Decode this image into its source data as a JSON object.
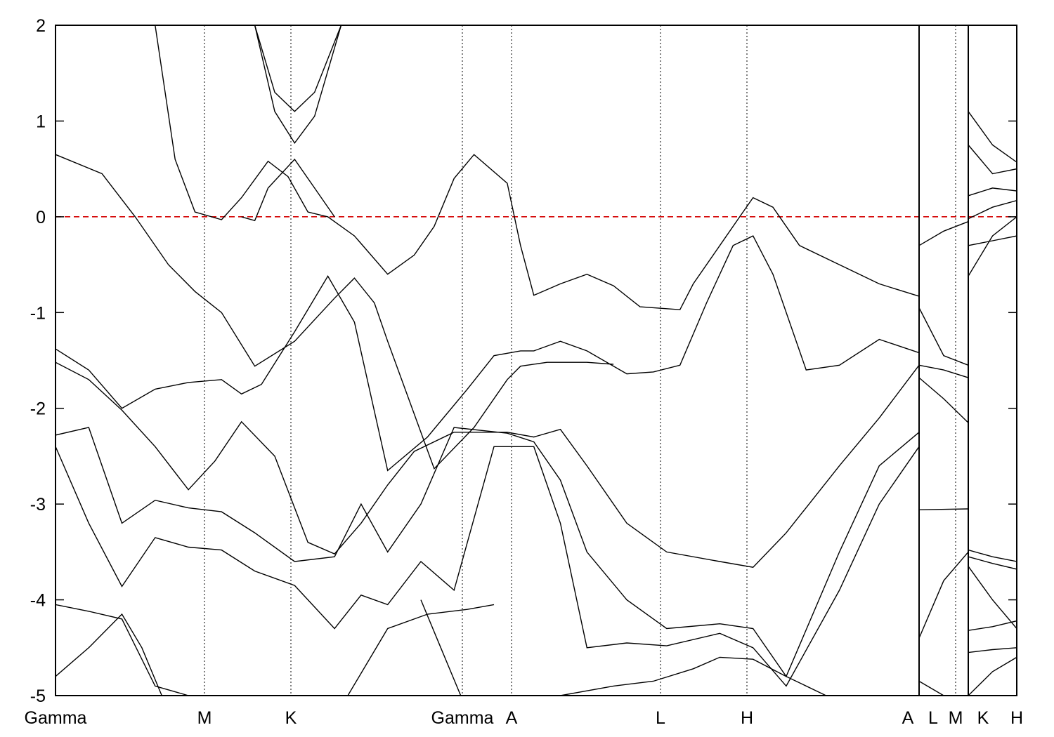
{
  "chart_data": {
    "type": "line",
    "title": "",
    "xlabel": "",
    "ylabel": "",
    "ylim": [
      -5,
      2
    ],
    "y_ticks": [
      -5,
      -4,
      -3,
      -2,
      -1,
      0,
      1,
      2
    ],
    "fermi_level": 0,
    "fermi_color": "#d40000",
    "line_color": "#000000",
    "k_path_ticks": [
      "Gamma",
      "M",
      "K",
      "Gamma",
      "A",
      "L",
      "H",
      "A",
      "L",
      "M",
      "K",
      "H"
    ],
    "segments": [
      {
        "from": "Gamma",
        "to": "M"
      },
      {
        "from": "M",
        "to": "K"
      },
      {
        "from": "K",
        "to": "Gamma"
      },
      {
        "from": "Gamma",
        "to": "A"
      },
      {
        "from": "A",
        "to": "L"
      },
      {
        "from": "L",
        "to": "H"
      },
      {
        "from": "H",
        "to": "A"
      },
      {
        "from": "L",
        "to": "M"
      },
      {
        "from": "K",
        "to": "H"
      }
    ],
    "series": [
      {
        "values": [
          [
            0,
            0.65
          ],
          [
            0.07,
            0.45
          ],
          [
            0.12,
            0.0
          ],
          [
            0.17,
            -0.5
          ],
          [
            0.21,
            -0.78
          ],
          [
            0.25,
            -1.0
          ],
          [
            0.3,
            -1.56
          ],
          [
            0.36,
            -1.3
          ],
          [
            0.42,
            -0.85
          ],
          [
            0.45,
            -0.64
          ],
          [
            0.48,
            -0.9
          ],
          [
            0.5,
            -1.3
          ],
          [
            0.57,
            -2.63
          ],
          [
            0.63,
            -2.2
          ],
          [
            0.68,
            -1.7
          ],
          [
            0.7,
            -1.56
          ],
          [
            0.74,
            -1.52
          ],
          [
            0.8,
            -1.52
          ],
          [
            0.84,
            -1.54
          ]
        ]
      },
      {
        "values": [
          [
            0.15,
            2.0
          ],
          [
            0.18,
            0.6
          ],
          [
            0.21,
            0.05
          ],
          [
            0.25,
            -0.03
          ],
          [
            0.28,
            0.2
          ],
          [
            0.32,
            0.58
          ],
          [
            0.35,
            0.42
          ],
          [
            0.38,
            0.05
          ],
          [
            0.41,
            0.0
          ],
          [
            0.45,
            -0.2
          ],
          [
            0.5,
            -0.6
          ],
          [
            0.54,
            -0.4
          ],
          [
            0.57,
            -0.1
          ],
          [
            0.6,
            0.4
          ],
          [
            0.63,
            0.65
          ],
          [
            0.68,
            0.35
          ],
          [
            0.7,
            -0.3
          ],
          [
            0.72,
            -0.82
          ],
          [
            0.76,
            -0.7
          ],
          [
            0.8,
            -0.6
          ],
          [
            0.84,
            -0.72
          ],
          [
            0.88,
            -0.94
          ],
          [
            0.92,
            -0.96
          ],
          [
            0.94,
            -0.97
          ],
          [
            0.96,
            -0.7
          ],
          [
            1.0,
            -0.3
          ],
          [
            1.03,
            0.0
          ],
          [
            1.05,
            0.2
          ],
          [
            1.08,
            0.1
          ],
          [
            1.12,
            -0.3
          ],
          [
            1.18,
            -0.5
          ],
          [
            1.24,
            -0.7
          ],
          [
            1.3,
            -0.83
          ]
        ]
      },
      {
        "values": [
          [
            0.28,
            0.0
          ],
          [
            0.3,
            -0.04
          ],
          [
            0.32,
            0.3
          ],
          [
            0.36,
            0.6
          ],
          [
            0.39,
            0.3
          ],
          [
            0.42,
            0.0
          ]
        ]
      },
      {
        "values": [
          [
            0.3,
            2.0
          ],
          [
            0.33,
            1.3
          ],
          [
            0.36,
            1.1
          ],
          [
            0.39,
            1.3
          ],
          [
            0.43,
            2.0
          ]
        ]
      },
      {
        "values": [
          [
            0.3,
            2.0
          ],
          [
            0.33,
            1.1
          ],
          [
            0.36,
            0.77
          ],
          [
            0.39,
            1.05
          ],
          [
            0.43,
            2.0
          ]
        ]
      },
      {
        "values": [
          [
            0.0,
            -1.38
          ],
          [
            0.05,
            -1.6
          ],
          [
            0.1,
            -2.0
          ],
          [
            0.15,
            -1.8
          ],
          [
            0.2,
            -1.73
          ],
          [
            0.25,
            -1.7
          ],
          [
            0.28,
            -1.85
          ],
          [
            0.31,
            -1.75
          ],
          [
            0.36,
            -1.2
          ],
          [
            0.41,
            -0.62
          ],
          [
            0.45,
            -1.1
          ],
          [
            0.5,
            -2.65
          ],
          [
            0.56,
            -2.3
          ],
          [
            0.62,
            -1.8
          ],
          [
            0.66,
            -1.45
          ],
          [
            0.7,
            -1.4
          ],
          [
            0.72,
            -1.4
          ],
          [
            0.76,
            -1.3
          ],
          [
            0.8,
            -1.4
          ],
          [
            0.86,
            -1.64
          ],
          [
            0.9,
            -1.62
          ],
          [
            0.94,
            -1.55
          ],
          [
            0.98,
            -0.9
          ],
          [
            1.02,
            -0.3
          ],
          [
            1.05,
            -0.2
          ],
          [
            1.08,
            -0.6
          ],
          [
            1.13,
            -1.6
          ],
          [
            1.18,
            -1.55
          ],
          [
            1.24,
            -1.28
          ],
          [
            1.3,
            -1.42
          ]
        ]
      },
      {
        "values": [
          [
            0.0,
            -1.52
          ],
          [
            0.05,
            -1.7
          ],
          [
            0.1,
            -2.02
          ],
          [
            0.15,
            -2.4
          ],
          [
            0.2,
            -2.85
          ],
          [
            0.24,
            -2.55
          ],
          [
            0.28,
            -2.14
          ],
          [
            0.33,
            -2.5
          ],
          [
            0.38,
            -3.4
          ],
          [
            0.42,
            -3.52
          ],
          [
            0.46,
            -3.2
          ],
          [
            0.5,
            -2.8
          ],
          [
            0.54,
            -2.45
          ],
          [
            0.6,
            -2.25
          ],
          [
            0.68,
            -2.25
          ],
          [
            0.72,
            -2.3
          ],
          [
            0.76,
            -2.22
          ],
          [
            0.8,
            -2.6
          ],
          [
            0.86,
            -3.2
          ],
          [
            0.92,
            -3.5
          ],
          [
            1.0,
            -3.6
          ],
          [
            1.05,
            -3.66
          ],
          [
            1.1,
            -3.3
          ],
          [
            1.18,
            -2.6
          ],
          [
            1.24,
            -2.1
          ],
          [
            1.3,
            -1.55
          ]
        ]
      },
      {
        "values": [
          [
            0.0,
            -2.28
          ],
          [
            0.05,
            -2.2
          ],
          [
            0.1,
            -3.2
          ],
          [
            0.15,
            -2.96
          ],
          [
            0.2,
            -3.04
          ],
          [
            0.25,
            -3.08
          ],
          [
            0.3,
            -3.3
          ],
          [
            0.36,
            -3.6
          ],
          [
            0.42,
            -3.55
          ],
          [
            0.46,
            -3.0
          ],
          [
            0.5,
            -3.5
          ],
          [
            0.55,
            -3.0
          ],
          [
            0.6,
            -2.2
          ],
          [
            0.68,
            -2.26
          ],
          [
            0.72,
            -2.35
          ],
          [
            0.76,
            -2.75
          ],
          [
            0.8,
            -3.5
          ],
          [
            0.86,
            -4.0
          ],
          [
            0.92,
            -4.3
          ],
          [
            1.0,
            -4.25
          ],
          [
            1.05,
            -4.3
          ],
          [
            1.1,
            -4.8
          ],
          [
            1.18,
            -3.5
          ],
          [
            1.24,
            -2.6
          ],
          [
            1.3,
            -2.25
          ]
        ]
      },
      {
        "values": [
          [
            0.0,
            -2.4
          ],
          [
            0.05,
            -3.2
          ],
          [
            0.1,
            -3.86
          ],
          [
            0.15,
            -3.35
          ],
          [
            0.2,
            -3.45
          ],
          [
            0.25,
            -3.48
          ],
          [
            0.3,
            -3.7
          ],
          [
            0.36,
            -3.85
          ],
          [
            0.42,
            -4.3
          ],
          [
            0.46,
            -3.95
          ],
          [
            0.5,
            -4.05
          ],
          [
            0.55,
            -3.6
          ],
          [
            0.6,
            -3.9
          ],
          [
            0.66,
            -2.4
          ],
          [
            0.72,
            -2.4
          ],
          [
            0.76,
            -3.2
          ],
          [
            0.8,
            -4.5
          ],
          [
            0.86,
            -4.45
          ],
          [
            0.92,
            -4.48
          ],
          [
            1.0,
            -4.35
          ],
          [
            1.05,
            -4.5
          ],
          [
            1.1,
            -4.9
          ],
          [
            1.18,
            -3.9
          ],
          [
            1.24,
            -3.0
          ],
          [
            1.3,
            -2.4
          ]
        ]
      },
      {
        "values": [
          [
            0.0,
            -4.05
          ],
          [
            0.05,
            -4.12
          ],
          [
            0.1,
            -4.2
          ],
          [
            0.15,
            -4.9
          ],
          [
            0.2,
            -5.0
          ]
        ]
      },
      {
        "values": [
          [
            0.0,
            -4.8
          ],
          [
            0.05,
            -4.5
          ],
          [
            0.1,
            -4.15
          ],
          [
            0.13,
            -4.5
          ],
          [
            0.16,
            -5.0
          ]
        ]
      },
      {
        "values": [
          [
            0.44,
            -5.0
          ],
          [
            0.5,
            -4.3
          ],
          [
            0.56,
            -4.15
          ],
          [
            0.62,
            -4.1
          ],
          [
            0.66,
            -4.05
          ]
        ]
      },
      {
        "values": [
          [
            0.55,
            -4.0
          ],
          [
            0.58,
            -4.5
          ],
          [
            0.61,
            -5.0
          ]
        ]
      },
      {
        "values": [
          [
            0.76,
            -5.0
          ],
          [
            0.84,
            -4.9
          ],
          [
            0.9,
            -4.85
          ],
          [
            0.96,
            -4.72
          ],
          [
            1.0,
            -4.6
          ],
          [
            1.05,
            -4.62
          ],
          [
            1.1,
            -4.8
          ],
          [
            1.16,
            -5.0
          ]
        ]
      }
    ],
    "right_panel_series": [
      {
        "values": [
          [
            0,
            -0.3
          ],
          [
            0.5,
            -0.15
          ],
          [
            1,
            -0.05
          ]
        ]
      },
      {
        "values": [
          [
            0,
            -0.95
          ],
          [
            0.5,
            -1.45
          ],
          [
            1,
            -1.55
          ]
        ]
      },
      {
        "values": [
          [
            0,
            -1.55
          ],
          [
            0.5,
            -1.6
          ],
          [
            1,
            -1.68
          ]
        ]
      },
      {
        "values": [
          [
            0,
            -1.68
          ],
          [
            0.5,
            -1.9
          ],
          [
            1,
            -2.15
          ]
        ]
      },
      {
        "values": [
          [
            0,
            -3.06
          ],
          [
            1,
            -3.05
          ]
        ]
      },
      {
        "values": [
          [
            0,
            -4.4
          ],
          [
            0.5,
            -3.8
          ],
          [
            1,
            -3.5
          ]
        ]
      },
      {
        "values": [
          [
            0,
            -4.85
          ],
          [
            0.5,
            -5.0
          ]
        ]
      }
    ],
    "right_panel2_series": [
      {
        "values": [
          [
            0,
            1.1
          ],
          [
            0.5,
            0.75
          ],
          [
            1,
            0.57
          ]
        ]
      },
      {
        "values": [
          [
            0,
            0.75
          ],
          [
            0.5,
            0.45
          ],
          [
            1,
            0.5
          ]
        ]
      },
      {
        "values": [
          [
            0,
            0.22
          ],
          [
            0.5,
            0.3
          ],
          [
            1,
            0.27
          ]
        ]
      },
      {
        "values": [
          [
            0,
            -0.02
          ],
          [
            0.5,
            0.1
          ],
          [
            1,
            0.17
          ]
        ]
      },
      {
        "values": [
          [
            0,
            -0.3
          ],
          [
            0.5,
            -0.25
          ],
          [
            1,
            -0.2
          ]
        ]
      },
      {
        "values": [
          [
            0,
            -0.62
          ],
          [
            0.5,
            -0.2
          ],
          [
            1,
            0.0
          ]
        ]
      },
      {
        "values": [
          [
            0,
            -3.48
          ],
          [
            0.5,
            -3.55
          ],
          [
            1,
            -3.6
          ]
        ]
      },
      {
        "values": [
          [
            0,
            -3.55
          ],
          [
            0.5,
            -3.62
          ],
          [
            1,
            -3.68
          ]
        ]
      },
      {
        "values": [
          [
            0,
            -3.65
          ],
          [
            0.5,
            -4.0
          ],
          [
            1,
            -4.3
          ]
        ]
      },
      {
        "values": [
          [
            0,
            -4.32
          ],
          [
            0.5,
            -4.28
          ],
          [
            1,
            -4.22
          ]
        ]
      },
      {
        "values": [
          [
            0,
            -4.55
          ],
          [
            0.5,
            -4.52
          ],
          [
            1,
            -4.5
          ]
        ]
      },
      {
        "values": [
          [
            0,
            -5.0
          ],
          [
            0.5,
            -4.75
          ],
          [
            1,
            -4.6
          ]
        ]
      }
    ]
  }
}
